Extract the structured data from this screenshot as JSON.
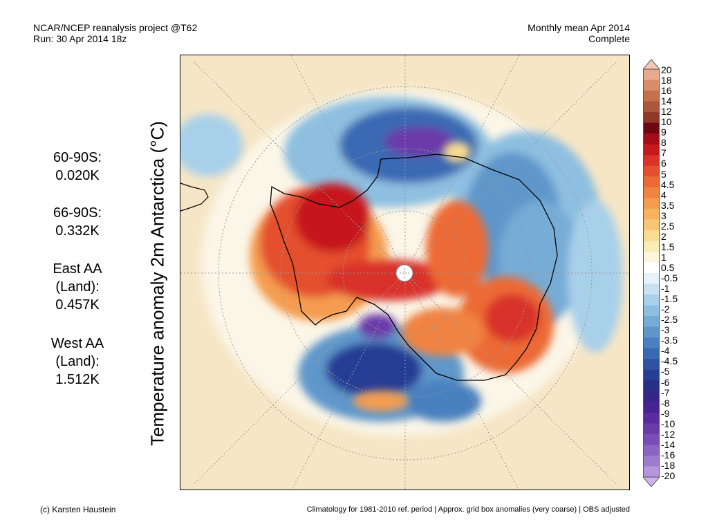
{
  "header": {
    "title": "NCAR/NCEP reanalysis project @T62",
    "run": "Run: 30 Apr 2014 18z",
    "period": "Monthly mean Apr 2014",
    "status": "Complete"
  },
  "map": {
    "ylabel": "Temperature anomaly 2m Antarctica (°C)",
    "colors": {
      "background": "#f6e6c6",
      "warm_strong": "#c6191d",
      "cold_strong": "#2e2f91",
      "purple": "#6a4dc4",
      "coastline": "#000000",
      "grid": "#9a9a9a"
    }
  },
  "stats": [
    {
      "label": "60-90S:",
      "value": "0.020K"
    },
    {
      "label": "66-90S:",
      "value": "0.332K"
    },
    {
      "label": "East AA",
      "label2": "(Land):",
      "value": "0.457K"
    },
    {
      "label": "West AA",
      "label2": "(Land):",
      "value": "1.512K"
    }
  ],
  "colorbar": {
    "levels": [
      "20",
      "18",
      "16",
      "14",
      "12",
      "10",
      "9",
      "8",
      "7",
      "6",
      "5",
      "4.5",
      "4",
      "3.5",
      "3",
      "2.5",
      "2",
      "1.5",
      "1",
      "0.5",
      "-0.5",
      "-1",
      "-1.5",
      "-2",
      "-2.5",
      "-3",
      "-3.5",
      "-4",
      "-4.5",
      "-5",
      "-6",
      "-7",
      "-8",
      "-9",
      "-10",
      "-12",
      "-14",
      "-16",
      "-18",
      "-20"
    ],
    "colors": [
      "#f3c8b8",
      "#e8a98c",
      "#d88c6c",
      "#c4704c",
      "#a9563a",
      "#8f3a26",
      "#6d0713",
      "#a20d18",
      "#c6191d",
      "#d9332a",
      "#e4502f",
      "#ec6a36",
      "#f08342",
      "#f49c50",
      "#f7b260",
      "#f8c674",
      "#fadb91",
      "#fbebb4",
      "#fbf6dc",
      "#ffffff",
      "#e5f1fb",
      "#c8e2f4",
      "#a9d0ea",
      "#8ebfe0",
      "#76acd6",
      "#5f97cb",
      "#4a80bf",
      "#3a69b3",
      "#2f52a4",
      "#273e95",
      "#2a2f86",
      "#36268a",
      "#482393",
      "#5a2a9e",
      "#6a3aa9",
      "#7a4eb5",
      "#8c64c2",
      "#9f7bd0",
      "#b596dc",
      "#cdb3ea"
    ]
  },
  "footer": {
    "credit": "(c) Karsten Haustein",
    "note": "Climatology for 1981-2010 ref. period | Approx. grid box anomalies (very coarse) | OBS adjusted"
  }
}
